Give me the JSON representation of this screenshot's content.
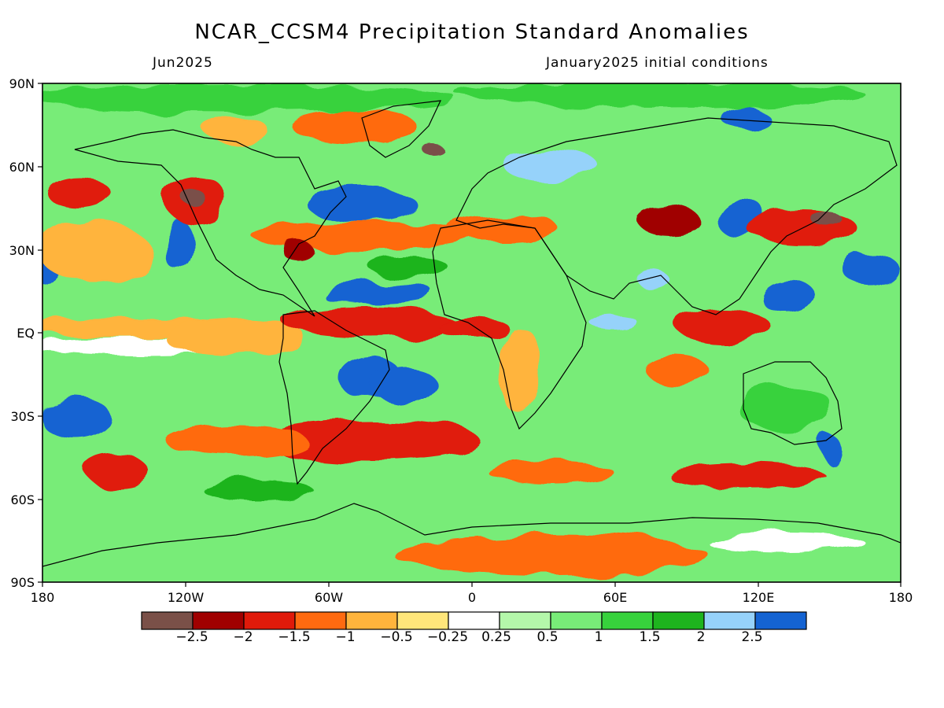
{
  "header": {
    "title": "NCAR_CCSM4 Precipitation Standard Anomalies",
    "target_month": "Jun2025",
    "init_conditions": "January2025 initial conditions"
  },
  "axes": {
    "lat_labels": [
      "90N",
      "60N",
      "30N",
      "EQ",
      "30S",
      "60S",
      "90S"
    ],
    "lon_labels": [
      "180",
      "120W",
      "60W",
      "0",
      "60E",
      "120E",
      "180"
    ]
  },
  "colorbar": {
    "labels": [
      "−2.5",
      "−2",
      "−1.5",
      "−1",
      "−0.5",
      "−0.25",
      "0.25",
      "0.5",
      "1",
      "1.5",
      "2",
      "2.5"
    ],
    "colors": [
      "#7a5048",
      "#a00000",
      "#e01a0a",
      "#ff6a10",
      "#ffb43c",
      "#ffe67a",
      "#ffffff",
      "#b4f7aa",
      "#78ec78",
      "#37d23c",
      "#1eb41e",
      "#96d2fa",
      "#1463d2"
    ]
  },
  "map": {
    "projection": "cylindrical equidistant",
    "extent": {
      "lon": [
        -180,
        180
      ],
      "lat": [
        -90,
        90
      ]
    },
    "field": "precipitation standard anomaly",
    "land_outline": "black coastlines"
  }
}
